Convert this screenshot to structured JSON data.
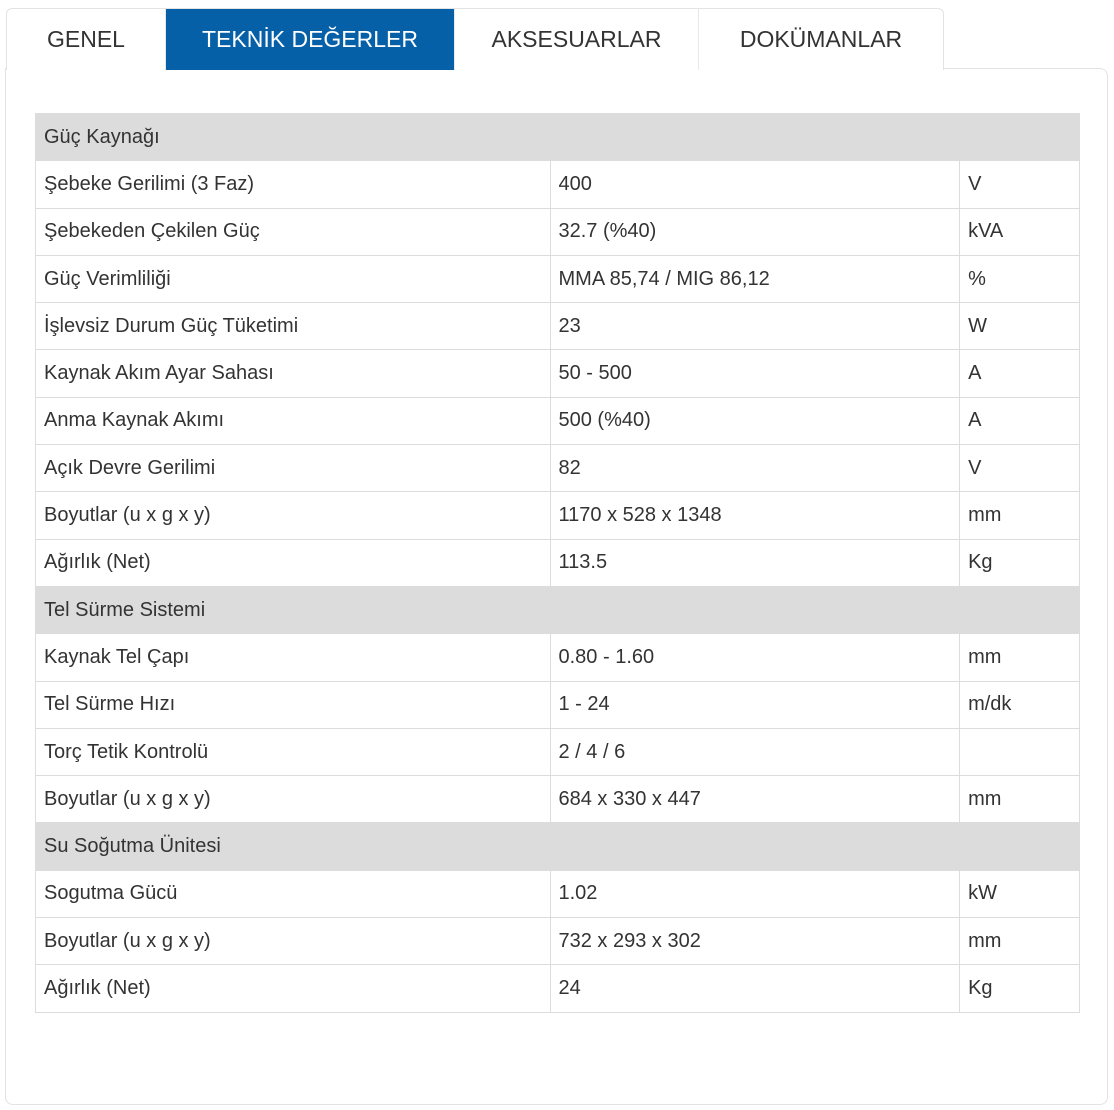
{
  "tabs": [
    {
      "label": "GENEL"
    },
    {
      "label": "TEKNİK DEĞERLER",
      "active": true
    },
    {
      "label": "AKSESUARLAR"
    },
    {
      "label": "DOKÜMANLAR"
    }
  ],
  "colors": {
    "active_tab": "#0560a8",
    "section_bg": "#dcdcdc"
  },
  "sections": [
    {
      "title": "Güç Kaynağı",
      "rows": [
        [
          "Şebeke Gerilimi (3 Faz)",
          "400",
          "V"
        ],
        [
          "Şebekeden Çekilen Güç",
          "32.7 (%40)",
          "kVA"
        ],
        [
          "Güç Verimliliği",
          "MMA 85,74 / MIG 86,12",
          "%"
        ],
        [
          "İşlevsiz Durum Güç Tüketimi",
          "23",
          "W"
        ],
        [
          "Kaynak Akım Ayar Sahası",
          "50 - 500",
          "A"
        ],
        [
          "Anma Kaynak Akımı",
          "500 (%40)",
          "A"
        ],
        [
          "Açık Devre Gerilimi",
          "82",
          "V"
        ],
        [
          "Boyutlar (u x g x y)",
          "1170 x 528 x 1348",
          "mm"
        ],
        [
          "Ağırlık (Net)",
          "113.5",
          "Kg"
        ]
      ]
    },
    {
      "title": "Tel Sürme Sistemi",
      "rows": [
        [
          "Kaynak Tel Çapı",
          "0.80 - 1.60",
          "mm"
        ],
        [
          "Tel Sürme Hızı",
          "1 - 24",
          "m/dk"
        ],
        [
          "Torç Tetik Kontrolü",
          "2 / 4 / 6",
          ""
        ],
        [
          "Boyutlar (u x g x y)",
          "684 x 330 x 447",
          "mm"
        ]
      ]
    },
    {
      "title": "Su Soğutma Ünitesi",
      "rows": [
        [
          "Sogutma Gücü",
          "1.02",
          "kW"
        ],
        [
          "Boyutlar (u x g x y)",
          "732 x 293 x 302",
          "mm"
        ],
        [
          "Ağırlık (Net)",
          "24",
          "Kg"
        ]
      ]
    }
  ]
}
